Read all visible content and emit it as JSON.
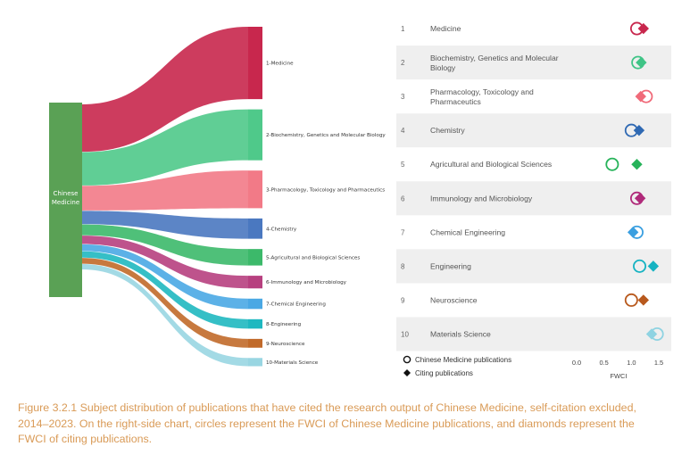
{
  "figure": {
    "caption": "Figure 3.2.1 Subject distribution of publications that have cited the research output of Chinese Medicine, self-citation excluded, 2014–2023. On the right-side chart, circles represent the FWCI of Chinese Medicine publications, and diamonds represent the FWCI of citing publications."
  },
  "chart_data": [
    {
      "type": "sankey",
      "source": {
        "label_line1": "Chinese",
        "label_line2": "Medicine",
        "color": "#5aa155"
      },
      "targets": [
        {
          "label": "1-Medicine",
          "share": 0.246,
          "color": "#c8274d"
        },
        {
          "label": "2-Biochemistry, Genetics and Molecular Biology",
          "share": 0.173,
          "color": "#4fc98a"
        },
        {
          "label": "3-Pharmacology, Toxicology and Pharmaceutics",
          "share": 0.128,
          "color": "#f27a87"
        },
        {
          "label": "4-Chemistry",
          "share": 0.069,
          "color": "#4a78c0"
        },
        {
          "label": "5-Agricultural and Biological Sciences",
          "share": 0.056,
          "color": "#3cb96a"
        },
        {
          "label": "6-Immunology and Microbiology",
          "share": 0.043,
          "color": "#b7407f"
        },
        {
          "label": "7-Chemical Engineering",
          "share": 0.035,
          "color": "#4aa8e4"
        },
        {
          "label": "8-Engineering",
          "share": 0.032,
          "color": "#1fb8c0"
        },
        {
          "label": "9-Neuroscience",
          "share": 0.03,
          "color": "#c16a2a"
        },
        {
          "label": "10-Materials Science",
          "share": 0.028,
          "color": "#99d6e2"
        }
      ]
    },
    {
      "type": "scatter",
      "rows": [
        {
          "rank": "1",
          "subject": [
            "Medicine"
          ],
          "circle": 1.1,
          "diamond": 1.22,
          "color": "#c8274d"
        },
        {
          "rank": "2",
          "subject": [
            "Biochemistry, Genetics and Molecular",
            "Biology"
          ],
          "circle": 1.12,
          "diamond": 1.18,
          "color": "#3fc486"
        },
        {
          "rank": "3",
          "subject": [
            "Pharmacology, Toxicology and",
            "Pharmaceutics"
          ],
          "circle": 1.27,
          "diamond": 1.17,
          "color": "#f06a79"
        },
        {
          "rank": "4",
          "subject": [
            "Chemistry"
          ],
          "circle": 1.0,
          "diamond": 1.14,
          "color": "#2f69b3"
        },
        {
          "rank": "5",
          "subject": [
            "Agricultural and Biological Sciences"
          ],
          "circle": 0.65,
          "diamond": 1.1,
          "color": "#27b35a"
        },
        {
          "rank": "6",
          "subject": [
            "Immunology and Microbiology"
          ],
          "circle": 1.1,
          "diamond": 1.16,
          "color": "#b02a7a"
        },
        {
          "rank": "7",
          "subject": [
            "Chemical Engineering"
          ],
          "circle": 1.1,
          "diamond": 1.03,
          "color": "#3a9fe0"
        },
        {
          "rank": "8",
          "subject": [
            "Engineering"
          ],
          "circle": 1.15,
          "diamond": 1.4,
          "color": "#16b3c2"
        },
        {
          "rank": "9",
          "subject": [
            "Neuroscience"
          ],
          "circle": 1.0,
          "diamond": 1.22,
          "color": "#b8591d"
        },
        {
          "rank": "10",
          "subject": [
            "Materials Science"
          ],
          "circle": 1.47,
          "diamond": 1.37,
          "color": "#8fd3e2"
        }
      ],
      "xticks": [
        "0.0",
        "0.5",
        "1.0",
        "1.5"
      ],
      "xlim": [
        0,
        1.5
      ],
      "xlabel": "FWCI",
      "legend": {
        "circle": "Chinese Medicine publications",
        "diamond": "Citing publications"
      }
    }
  ]
}
